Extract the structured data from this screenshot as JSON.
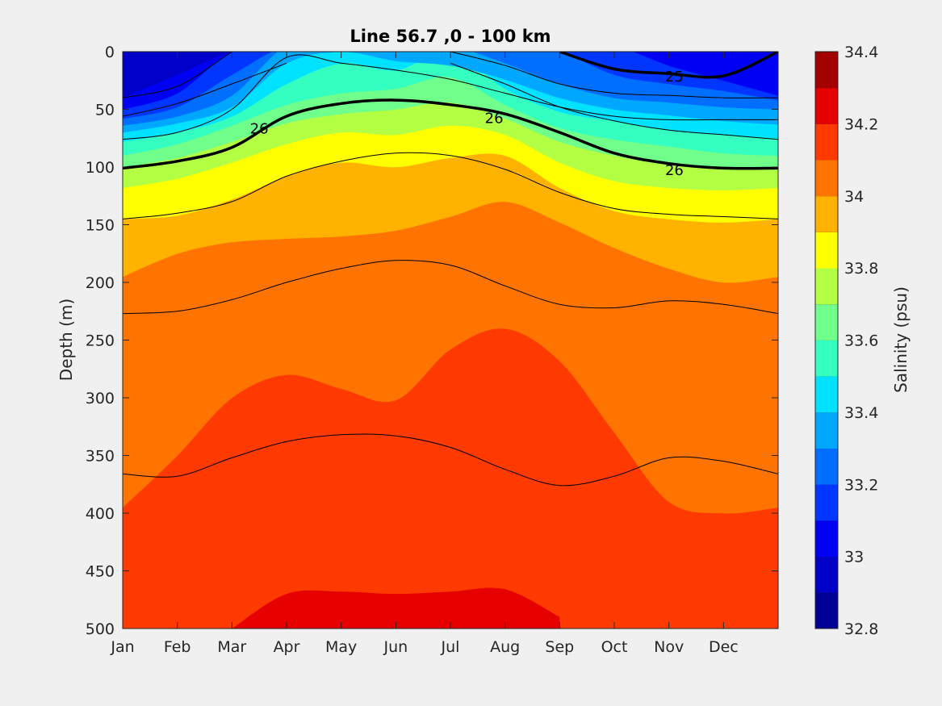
{
  "chart_data": {
    "type": "heatmap",
    "subtype": "filled-contour",
    "title": "Line 56.7 ,0 - 100 km",
    "xlabel": "",
    "ylabel": "Depth (m)",
    "colorbar_label": "Salinity (psu)",
    "x_ticks": [
      "Jan",
      "Feb",
      "Mar",
      "Apr",
      "May",
      "Jun",
      "Jul",
      "Aug",
      "Sep",
      "Oct",
      "Nov",
      "Dec"
    ],
    "x_tick_months": [
      1,
      2,
      3,
      4,
      5,
      6,
      7,
      8,
      9,
      10,
      11,
      12
    ],
    "xlim_months": [
      1,
      13
    ],
    "y_ticks": [
      0,
      50,
      100,
      150,
      200,
      250,
      300,
      350,
      400,
      450,
      500
    ],
    "ylim": [
      0,
      500
    ],
    "y_reversed": true,
    "colorbar_ticks": [
      "32.8",
      "33",
      "33.2",
      "33.4",
      "33.6",
      "33.8",
      "34",
      "34.2",
      "34.4"
    ],
    "colorbar_tick_values": [
      32.8,
      33.0,
      33.2,
      33.4,
      33.6,
      33.8,
      34.0,
      34.2,
      34.4
    ],
    "colorbar_range": [
      32.8,
      34.4
    ],
    "colorbar_bands": [
      {
        "min": 32.8,
        "max": 32.9,
        "color": "#000097"
      },
      {
        "min": 32.9,
        "max": 33.0,
        "color": "#0000c8"
      },
      {
        "min": 33.0,
        "max": 33.1,
        "color": "#0000f5"
      },
      {
        "min": 33.1,
        "max": 33.2,
        "color": "#0036ff"
      },
      {
        "min": 33.2,
        "max": 33.3,
        "color": "#006fff"
      },
      {
        "min": 33.3,
        "max": 33.4,
        "color": "#00a7ff"
      },
      {
        "min": 33.4,
        "max": 33.5,
        "color": "#00e2ff"
      },
      {
        "min": 33.5,
        "max": 33.6,
        "color": "#34ffc0"
      },
      {
        "min": 33.6,
        "max": 33.7,
        "color": "#6fff8a"
      },
      {
        "min": 33.7,
        "max": 33.8,
        "color": "#b2ff44"
      },
      {
        "min": 33.8,
        "max": 33.9,
        "color": "#ffff00"
      },
      {
        "min": 33.9,
        "max": 34.0,
        "color": "#ffb200"
      },
      {
        "min": 34.0,
        "max": 34.1,
        "color": "#ff7400"
      },
      {
        "min": 34.1,
        "max": 34.2,
        "color": "#ff3a00"
      },
      {
        "min": 34.2,
        "max": 34.3,
        "color": "#e60000"
      },
      {
        "min": 34.3,
        "max": 34.4,
        "color": "#a30000"
      }
    ],
    "salinity_isohalines": [
      {
        "value": 33.05,
        "depth": [
          40,
          20,
          0,
          null,
          null,
          null,
          null,
          null,
          null,
          null,
          null,
          null,
          null
        ]
      },
      {
        "value": 33.15,
        "depth": [
          50,
          36,
          0,
          null,
          null,
          null,
          null,
          null,
          null,
          null,
          12,
          25,
          38
        ]
      },
      {
        "value": 33.25,
        "depth": [
          58,
          48,
          20,
          null,
          null,
          null,
          null,
          null,
          0,
          20,
          28,
          34,
          42
        ]
      },
      {
        "value": 33.35,
        "depth": [
          64,
          56,
          38,
          null,
          null,
          null,
          null,
          10,
          28,
          40,
          44,
          48,
          50
        ]
      },
      {
        "value": 33.45,
        "depth": [
          70,
          62,
          48,
          10,
          0,
          8,
          12,
          24,
          40,
          50,
          55,
          60,
          63
        ]
      },
      {
        "value": 33.55,
        "depth": [
          78,
          70,
          56,
          28,
          10,
          16,
          0,
          32,
          52,
          60,
          68,
          72,
          75
        ]
      },
      {
        "value": 33.65,
        "depth": [
          90,
          80,
          64,
          46,
          36,
          32,
          22,
          46,
          66,
          76,
          82,
          88,
          90
        ]
      },
      {
        "value": 33.75,
        "depth": [
          100,
          92,
          78,
          62,
          54,
          50,
          44,
          58,
          78,
          90,
          98,
          102,
          102
        ]
      },
      {
        "value": 33.85,
        "depth": [
          118,
          110,
          96,
          80,
          70,
          72,
          64,
          72,
          96,
          112,
          118,
          120,
          118
        ]
      },
      {
        "value": 33.95,
        "depth": [
          145,
          142,
          128,
          108,
          96,
          100,
          92,
          90,
          118,
          138,
          145,
          148,
          145
        ]
      },
      {
        "value": 34.05,
        "depth": [
          195,
          175,
          165,
          162,
          160,
          155,
          143,
          130,
          148,
          170,
          188,
          200,
          195
        ]
      },
      {
        "value": 34.15,
        "depth": [
          395,
          350,
          300,
          280,
          292,
          302,
          258,
          240,
          268,
          330,
          390,
          400,
          395
        ]
      },
      {
        "value": 34.25,
        "depth": [
          null,
          null,
          500,
          470,
          468,
          470,
          468,
          466,
          490,
          null,
          null,
          null,
          null
        ]
      }
    ],
    "density_contours": [
      {
        "value": 24.5,
        "label": "",
        "bold": false,
        "depth": [
          40,
          30,
          0,
          null,
          null,
          null,
          null,
          null,
          null,
          null,
          null,
          null,
          null
        ]
      },
      {
        "value": 24.8,
        "label": "",
        "bold": false,
        "depth": [
          56,
          45,
          28,
          10,
          null,
          null,
          null,
          null,
          null,
          null,
          null,
          null,
          null
        ]
      },
      {
        "value": 25.0,
        "label": "25",
        "bold": true,
        "depth": [
          null,
          null,
          null,
          null,
          null,
          null,
          null,
          null,
          0,
          15,
          19,
          21,
          0
        ]
      },
      {
        "value": 25.2,
        "label": "",
        "bold": false,
        "depth": [
          null,
          null,
          null,
          null,
          null,
          null,
          0,
          12,
          28,
          36,
          38,
          40,
          40
        ]
      },
      {
        "value": 25.5,
        "label": "",
        "bold": false,
        "depth": [
          76,
          70,
          50,
          5,
          10,
          16,
          24,
          36,
          48,
          56,
          59,
          59,
          59
        ]
      },
      {
        "value": 25.7,
        "label": "",
        "bold": false,
        "depth": [
          null,
          null,
          null,
          null,
          null,
          null,
          10,
          28,
          48,
          60,
          68,
          72,
          76
        ]
      },
      {
        "value": 26.0,
        "label": "26",
        "bold": true,
        "depth": [
          101,
          95,
          83,
          56,
          45,
          42,
          46,
          54,
          70,
          88,
          97,
          101,
          101
        ]
      },
      {
        "value": 26.3,
        "label": "",
        "bold": false,
        "depth": [
          145,
          140,
          130,
          108,
          95,
          88,
          90,
          102,
          122,
          136,
          141,
          143,
          145
        ]
      },
      {
        "value": 26.6,
        "label": "",
        "bold": false,
        "depth": [
          227,
          225,
          215,
          200,
          188,
          181,
          185,
          203,
          219,
          222,
          216,
          219,
          227
        ]
      },
      {
        "value": 26.8,
        "label": "",
        "bold": false,
        "depth": [
          366,
          368,
          352,
          338,
          332,
          333,
          343,
          362,
          376,
          368,
          352,
          355,
          366
        ]
      }
    ],
    "contour_labels": [
      {
        "text": "26",
        "month": 3.5,
        "depth": 66
      },
      {
        "text": "26",
        "month": 7.8,
        "depth": 57
      },
      {
        "text": "26",
        "month": 11.1,
        "depth": 102
      },
      {
        "text": "25",
        "month": 11.1,
        "depth": 21
      }
    ]
  }
}
